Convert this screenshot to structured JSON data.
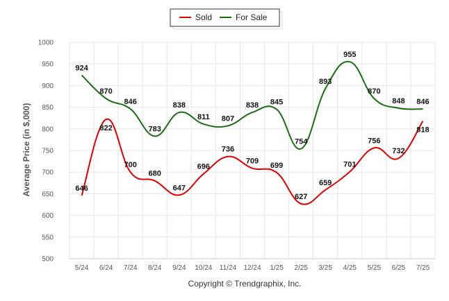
{
  "chart_data": {
    "type": "line",
    "categories": [
      "5/24",
      "6/24",
      "7/24",
      "8/24",
      "9/24",
      "10/24",
      "11/24",
      "12/24",
      "1/25",
      "2/25",
      "3/25",
      "4/25",
      "5/25",
      "6/25",
      "7/25"
    ],
    "series": [
      {
        "name": "Sold",
        "color": "#e00000",
        "values": [
          646,
          822,
          700,
          680,
          647,
          696,
          736,
          709,
          699,
          627,
          659,
          701,
          756,
          732,
          818
        ]
      },
      {
        "name": "For Sale",
        "color": "#1a6b12",
        "values": [
          924,
          870,
          846,
          783,
          838,
          811,
          807,
          838,
          845,
          754,
          893,
          955,
          870,
          848,
          846
        ]
      }
    ],
    "ylabel": "Average Price (in $,000)",
    "ylim": [
      500,
      1000
    ],
    "yticks": [
      500,
      550,
      600,
      650,
      700,
      750,
      800,
      850,
      900,
      950,
      1000
    ],
    "grid": true,
    "legend_position": "top-center"
  },
  "footer": {
    "copyright": "Copyright © Trendgraphix, Inc."
  }
}
